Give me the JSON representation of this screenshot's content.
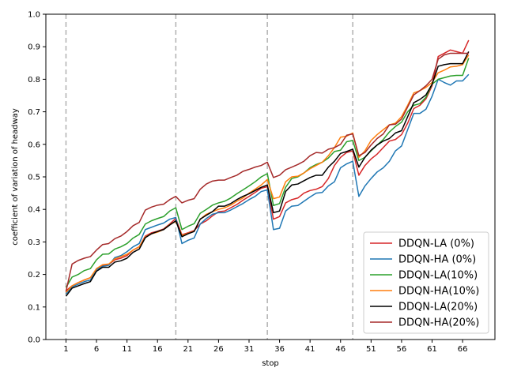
{
  "chart_data": {
    "type": "line",
    "title": "",
    "xlabel": "stop",
    "ylabel": "coefficient of variation of headway",
    "xlim": [
      -2.3,
      71.3
    ],
    "ylim": [
      0.0,
      1.0
    ],
    "xticks": [
      1,
      6,
      11,
      16,
      21,
      26,
      31,
      36,
      41,
      46,
      51,
      56,
      61,
      66
    ],
    "yticks": [
      0.0,
      0.1,
      0.2,
      0.3,
      0.4,
      0.5,
      0.6,
      0.7,
      0.8,
      0.9,
      1.0
    ],
    "vlines": [
      1,
      19,
      34,
      48
    ],
    "legend_position": "lower-right",
    "grid": false,
    "x": [
      1,
      2,
      3,
      4,
      5,
      6,
      7,
      8,
      9,
      10,
      11,
      12,
      13,
      14,
      15,
      16,
      17,
      18,
      19,
      20,
      21,
      22,
      23,
      24,
      25,
      26,
      27,
      28,
      29,
      30,
      31,
      32,
      33,
      34,
      35,
      36,
      37,
      38,
      39,
      40,
      41,
      42,
      43,
      44,
      45,
      46,
      47,
      48,
      49,
      50,
      51,
      52,
      53,
      54,
      55,
      56,
      57,
      58,
      59,
      60,
      61,
      62,
      63,
      64,
      65,
      66,
      67
    ],
    "series": [
      {
        "name": "DDQN-LA (0%)",
        "color": "#d62728",
        "values": [
          0.15,
          0.165,
          0.175,
          0.183,
          0.19,
          0.215,
          0.228,
          0.23,
          0.245,
          0.25,
          0.258,
          0.275,
          0.285,
          0.318,
          0.328,
          0.333,
          0.34,
          0.355,
          0.372,
          0.322,
          0.328,
          0.335,
          0.355,
          0.365,
          0.38,
          0.393,
          0.395,
          0.405,
          0.415,
          0.428,
          0.44,
          0.452,
          0.465,
          0.47,
          0.37,
          0.378,
          0.42,
          0.43,
          0.435,
          0.45,
          0.458,
          0.462,
          0.47,
          0.495,
          0.535,
          0.56,
          0.575,
          0.58,
          0.505,
          0.535,
          0.555,
          0.57,
          0.59,
          0.61,
          0.615,
          0.63,
          0.665,
          0.71,
          0.72,
          0.74,
          0.78,
          0.87,
          0.88,
          0.89,
          0.885,
          0.88,
          0.92
        ]
      },
      {
        "name": "DDQN-HA (0%)",
        "color": "#1f77b4",
        "values": [
          0.14,
          0.162,
          0.17,
          0.178,
          0.183,
          0.215,
          0.225,
          0.228,
          0.252,
          0.258,
          0.27,
          0.285,
          0.295,
          0.338,
          0.345,
          0.352,
          0.358,
          0.37,
          0.375,
          0.295,
          0.305,
          0.312,
          0.355,
          0.372,
          0.385,
          0.39,
          0.39,
          0.398,
          0.408,
          0.418,
          0.43,
          0.44,
          0.455,
          0.46,
          0.338,
          0.342,
          0.395,
          0.41,
          0.412,
          0.425,
          0.438,
          0.45,
          0.452,
          0.472,
          0.485,
          0.528,
          0.54,
          0.548,
          0.44,
          0.472,
          0.495,
          0.515,
          0.528,
          0.548,
          0.58,
          0.595,
          0.645,
          0.695,
          0.695,
          0.708,
          0.748,
          0.8,
          0.79,
          0.782,
          0.795,
          0.795,
          0.815
        ]
      },
      {
        "name": "DDQN-LA(10%)",
        "color": "#2ca02c",
        "values": [
          0.16,
          0.192,
          0.2,
          0.212,
          0.218,
          0.245,
          0.262,
          0.263,
          0.278,
          0.285,
          0.295,
          0.312,
          0.323,
          0.355,
          0.365,
          0.372,
          0.378,
          0.395,
          0.405,
          0.338,
          0.348,
          0.356,
          0.388,
          0.4,
          0.413,
          0.42,
          0.425,
          0.435,
          0.448,
          0.46,
          0.472,
          0.485,
          0.5,
          0.51,
          0.412,
          0.418,
          0.468,
          0.495,
          0.5,
          0.512,
          0.528,
          0.538,
          0.545,
          0.558,
          0.578,
          0.582,
          0.608,
          0.612,
          0.55,
          0.56,
          0.58,
          0.598,
          0.615,
          0.638,
          0.655,
          0.668,
          0.7,
          0.72,
          0.725,
          0.745,
          0.785,
          0.8,
          0.805,
          0.81,
          0.812,
          0.812,
          0.865
        ]
      },
      {
        "name": "DDQN-HA(10%)",
        "color": "#ff7f0e",
        "values": [
          0.145,
          0.165,
          0.175,
          0.183,
          0.19,
          0.218,
          0.23,
          0.232,
          0.248,
          0.255,
          0.262,
          0.275,
          0.285,
          0.315,
          0.325,
          0.33,
          0.338,
          0.353,
          0.363,
          0.32,
          0.326,
          0.333,
          0.37,
          0.385,
          0.393,
          0.4,
          0.405,
          0.413,
          0.425,
          0.435,
          0.45,
          0.462,
          0.475,
          0.492,
          0.433,
          0.438,
          0.485,
          0.5,
          0.502,
          0.512,
          0.525,
          0.535,
          0.545,
          0.565,
          0.59,
          0.622,
          0.625,
          0.635,
          0.56,
          0.58,
          0.612,
          0.63,
          0.645,
          0.66,
          0.665,
          0.685,
          0.72,
          0.758,
          0.765,
          0.775,
          0.79,
          0.82,
          0.828,
          0.838,
          0.84,
          0.845,
          0.875
        ]
      },
      {
        "name": "DDQN-LA(20%)",
        "color": "#000000",
        "values": [
          0.133,
          0.158,
          0.165,
          0.172,
          0.178,
          0.21,
          0.222,
          0.222,
          0.238,
          0.242,
          0.25,
          0.268,
          0.278,
          0.313,
          0.325,
          0.332,
          0.338,
          0.352,
          0.365,
          0.316,
          0.325,
          0.332,
          0.37,
          0.382,
          0.393,
          0.41,
          0.41,
          0.418,
          0.43,
          0.44,
          0.448,
          0.458,
          0.468,
          0.475,
          0.39,
          0.395,
          0.455,
          0.475,
          0.478,
          0.488,
          0.498,
          0.505,
          0.505,
          0.53,
          0.548,
          0.572,
          0.578,
          0.585,
          0.53,
          0.56,
          0.582,
          0.598,
          0.61,
          0.618,
          0.635,
          0.642,
          0.685,
          0.728,
          0.738,
          0.752,
          0.785,
          0.84,
          0.845,
          0.848,
          0.848,
          0.848,
          0.885
        ]
      },
      {
        "name": "DDQN-HA(20%)",
        "color": "#a52a2a",
        "values": [
          0.148,
          0.232,
          0.243,
          0.25,
          0.255,
          0.275,
          0.292,
          0.295,
          0.31,
          0.318,
          0.332,
          0.35,
          0.36,
          0.398,
          0.407,
          0.413,
          0.416,
          0.43,
          0.44,
          0.42,
          0.428,
          0.433,
          0.462,
          0.478,
          0.487,
          0.49,
          0.49,
          0.498,
          0.505,
          0.517,
          0.523,
          0.53,
          0.535,
          0.545,
          0.498,
          0.505,
          0.522,
          0.53,
          0.538,
          0.548,
          0.565,
          0.575,
          0.573,
          0.585,
          0.59,
          0.6,
          0.628,
          0.632,
          0.565,
          0.575,
          0.598,
          0.618,
          0.632,
          0.66,
          0.662,
          0.678,
          0.715,
          0.752,
          0.765,
          0.78,
          0.8,
          0.862,
          0.875,
          0.88,
          0.88,
          0.88,
          0.88
        ]
      }
    ]
  }
}
